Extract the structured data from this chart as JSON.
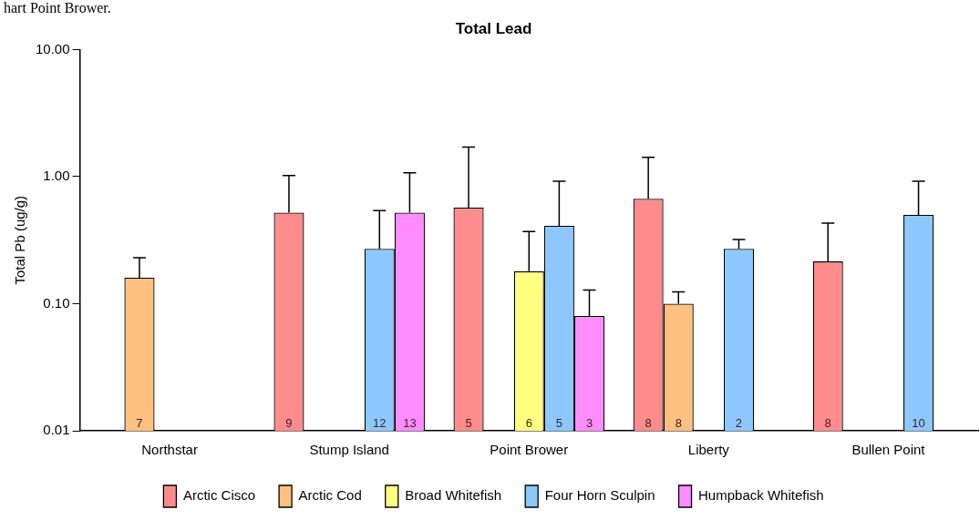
{
  "chart_data": {
    "type": "bar",
    "title": "Total Lead",
    "ylabel": "Total Pb (ug/g)",
    "annotations": [
      "hart Point Brower.",
      "7",
      "9",
      "12",
      "13",
      "5",
      "6",
      "5",
      "3",
      "8",
      "8",
      "2",
      "8",
      "10"
    ],
    "categories": [
      "Northstar",
      "Stump Island",
      "Point Brower",
      "Liberty",
      "Bullen Point"
    ],
    "series": [
      {
        "name": "Arctic Cisco",
        "color": "#ff8c8c",
        "values": [
          null,
          0.52,
          0.57,
          0.67,
          0.215
        ],
        "errors": [
          null,
          [
            0.52,
            1.02
          ],
          [
            0.57,
            1.71
          ],
          [
            0.67,
            1.42
          ],
          [
            0.215,
            0.43
          ]
        ]
      },
      {
        "name": "Arctic Cod",
        "color": "#ffc080",
        "values": [
          0.16,
          null,
          null,
          0.1,
          null
        ],
        "errors": [
          [
            0.16,
            0.23
          ],
          null,
          null,
          [
            0.1,
            0.124
          ],
          null
        ]
      },
      {
        "name": "Broad Whitefish",
        "color": "#ffff80",
        "values": [
          null,
          null,
          0.18,
          null,
          null
        ],
        "errors": [
          null,
          null,
          [
            0.18,
            0.37
          ],
          null,
          null
        ]
      },
      {
        "name": "Four Horn Sculpin",
        "color": "#8cc8ff",
        "values": [
          null,
          0.27,
          0.41,
          0.27,
          0.5
        ],
        "errors": [
          null,
          [
            0.27,
            0.54
          ],
          [
            0.41,
            0.92
          ],
          [
            0.27,
            0.32
          ],
          [
            0.5,
            0.92
          ]
        ]
      },
      {
        "name": "Humpback Whitefish",
        "color": "#ff8cff",
        "values": [
          null,
          0.52,
          0.08,
          null,
          null
        ],
        "errors": [
          null,
          [
            0.52,
            1.07
          ],
          [
            0.08,
            0.128
          ],
          null,
          null
        ]
      }
    ],
    "log": "y",
    "ylim": [
      0.01,
      10
    ],
    "yticks": [
      {
        "value": 0.01,
        "label": "0.01"
      },
      {
        "value": 0.1,
        "label": "0.10"
      },
      {
        "value": 1,
        "label": "1.00"
      },
      {
        "value": 10,
        "label": "10.00"
      }
    ],
    "grid": false,
    "legend": "bottom"
  }
}
